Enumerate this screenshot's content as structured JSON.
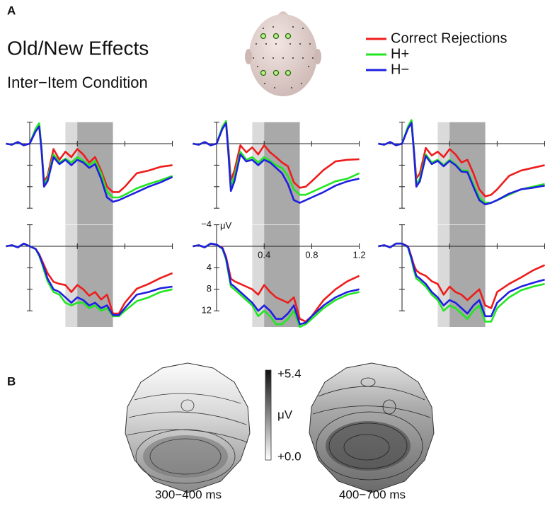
{
  "chart_data": [
    {
      "type": "line",
      "panel_label": "A",
      "title": "Old/New Effects",
      "subtitle": "Inter−Item Condition",
      "x": [
        -0.2,
        -0.15,
        -0.1,
        -0.05,
        0,
        0.05,
        0.08,
        0.1,
        0.12,
        0.15,
        0.2,
        0.25,
        0.3,
        0.35,
        0.4,
        0.45,
        0.5,
        0.55,
        0.6,
        0.65,
        0.7,
        0.75,
        0.8,
        0.9,
        1.0,
        1.1,
        1.2
      ],
      "xlim": [
        -0.2,
        1.2
      ],
      "xticks": [
        0.4,
        0.8,
        1.2
      ],
      "ylim": [
        -4,
        15
      ],
      "yticks": [
        {
          "value": -4,
          "label": "−4"
        },
        4,
        8,
        12
      ],
      "y_label": "μV",
      "y_inverted": true,
      "axes_panel": 4,
      "windows": [
        {
          "start": 0.3,
          "end": 0.4,
          "color": "#dadada"
        },
        {
          "start": 0.4,
          "end": 0.7,
          "color": "#a9a9a9"
        }
      ],
      "series": [
        {
          "name": "Correct Rejections",
          "color": "#ee1c1c",
          "values": [
            [
              0,
              0.2,
              -0.3,
              0.3,
              0,
              -2.5,
              -3.5,
              1,
              7,
              6,
              1,
              3,
              1.5,
              2.5,
              1,
              2,
              3.5,
              2.5,
              5,
              8,
              9,
              9,
              8,
              5.5,
              5,
              4.3,
              4
            ],
            [
              0,
              0.2,
              -0.3,
              0.3,
              0,
              -3,
              -4,
              1,
              6.8,
              5,
              0.3,
              1.6,
              0.7,
              2,
              0.3,
              1.6,
              2.5,
              3.5,
              4.2,
              7.2,
              8.2,
              8,
              7,
              4.9,
              3.3,
              3,
              2.9
            ],
            [
              0,
              0.2,
              -0.3,
              0.3,
              0,
              -3,
              -4.2,
              1,
              6.5,
              5.5,
              0.8,
              2.2,
              1.5,
              2.5,
              1,
              2,
              3.5,
              3,
              5.5,
              8.5,
              9.8,
              9.5,
              8.5,
              6,
              5,
              4.5,
              4
            ],
            [
              0,
              -0.2,
              0.2,
              -0.5,
              0,
              0.5,
              1.5,
              2.5,
              3.5,
              5,
              6.6,
              7,
              7.2,
              8.5,
              7.2,
              8,
              9.2,
              8.5,
              9.9,
              9,
              12.5,
              12.5,
              10.5,
              7.9,
              7,
              5.9,
              5
            ],
            [
              0,
              -0.2,
              0.2,
              -0.5,
              -0.3,
              0.3,
              2,
              4,
              6,
              6.5,
              7,
              7.5,
              8,
              9,
              7.2,
              8.5,
              9.5,
              10,
              10.5,
              9.5,
              13.5,
              14,
              13,
              10,
              8,
              6.5,
              5.5
            ],
            [
              0,
              -0.2,
              0.2,
              -0.5,
              -0.5,
              0,
              2,
              3.5,
              4.5,
              5,
              5.5,
              6.5,
              7,
              9,
              7.5,
              8.5,
              9,
              10,
              9,
              8,
              11,
              11.5,
              8.5,
              7,
              5.8,
              4.5,
              3.5
            ]
          ]
        },
        {
          "name": "H+",
          "color": "#22e622",
          "values": [
            [
              0,
              0.2,
              -0.3,
              0.3,
              0,
              -2.8,
              -3.8,
              1,
              7.5,
              6.5,
              2,
              3.5,
              2.8,
              3.5,
              2.5,
              3.2,
              4,
              3.2,
              5.5,
              9,
              10,
              10,
              9.5,
              8.3,
              7.5,
              6.8,
              6
            ],
            [
              0,
              0.2,
              -0.3,
              0.3,
              0,
              -3.2,
              -4.2,
              1.5,
              8,
              6,
              1.5,
              3,
              2.5,
              3.5,
              2.5,
              3.2,
              4,
              4.5,
              6,
              8.5,
              9.5,
              9.5,
              9,
              8,
              7,
              6.5,
              5.5
            ],
            [
              0,
              0.2,
              -0.3,
              0.3,
              0,
              -3.2,
              -4.4,
              1.2,
              7.5,
              6.5,
              2,
              3.5,
              3,
              4,
              3,
              3.8,
              5,
              5,
              7.5,
              10,
              11,
              11,
              10.5,
              9.5,
              8.5,
              8,
              7.5
            ],
            [
              0,
              -0.2,
              0.2,
              -0.5,
              0,
              0.5,
              1.8,
              3,
              4.5,
              6.5,
              8.5,
              9,
              10.5,
              11,
              10.5,
              10.5,
              11.5,
              11,
              12,
              11.5,
              13,
              13,
              12,
              10.2,
              9.5,
              8.5,
              8
            ],
            [
              0,
              -0.2,
              0.2,
              -0.5,
              -0.3,
              0.5,
              2.5,
              5,
              7.5,
              8,
              9,
              10,
              11,
              13,
              12,
              13,
              14.5,
              14.5,
              13.5,
              12,
              15,
              14.5,
              13.5,
              11.5,
              10,
              9,
              8.5
            ],
            [
              0,
              -0.2,
              0.2,
              -0.5,
              -0.5,
              0.2,
              2.5,
              4.5,
              6,
              6.5,
              7.5,
              9,
              10,
              12,
              11,
              11.5,
              12.5,
              13.5,
              12,
              11,
              14,
              14,
              11.5,
              9.5,
              8.2,
              7.5,
              7
            ]
          ]
        },
        {
          "name": "H−",
          "color": "#1f1fe0",
          "values": [
            [
              0,
              0.2,
              -0.3,
              0.3,
              0,
              -2.3,
              -3.2,
              1.5,
              8,
              7,
              2.5,
              3.8,
              3,
              4,
              3,
              3.5,
              4.5,
              3.8,
              6.5,
              10,
              10.8,
              10.5,
              10,
              9,
              8,
              7.2,
              6.2
            ],
            [
              0,
              0.2,
              -0.3,
              0.3,
              0,
              -2.8,
              -3.8,
              2,
              8.8,
              7,
              2,
              3.3,
              3,
              4,
              3,
              3.5,
              4.5,
              5.5,
              7.5,
              10.5,
              11,
              10.5,
              10,
              9,
              7.8,
              7,
              6.5
            ],
            [
              0,
              0.2,
              -0.3,
              0.3,
              0,
              -2.8,
              -3.9,
              1.5,
              8,
              7,
              2.3,
              3.8,
              3.2,
              4.2,
              3.2,
              4,
              5.2,
              5.3,
              8,
              10.5,
              11.3,
              11,
              10.5,
              9.3,
              8.5,
              8.2,
              7.8
            ],
            [
              0,
              -0.2,
              0.2,
              -0.5,
              0,
              0.5,
              1.6,
              2.8,
              4,
              6,
              8,
              8.5,
              9.5,
              10.5,
              9.5,
              10,
              11,
              10.5,
              11.5,
              11,
              12.8,
              12.8,
              11.5,
              9,
              8.5,
              7.8,
              7.5
            ],
            [
              0,
              -0.2,
              0.2,
              -0.5,
              -0.3,
              0.4,
              2.2,
              4.5,
              7,
              7.5,
              8.5,
              9.5,
              10.5,
              12,
              11,
              12,
              13.5,
              13.5,
              12.5,
              11,
              14.5,
              14.2,
              13,
              11,
              9.5,
              8.5,
              8
            ],
            [
              0,
              -0.2,
              0.2,
              -0.5,
              -0.5,
              0.1,
              2.2,
              4,
              5.5,
              6,
              7,
              8.5,
              9.5,
              11,
              10,
              10.5,
              11.5,
              12.5,
              11,
              10,
              13,
              13,
              10.5,
              8.5,
              7.5,
              6.8,
              6.2
            ]
          ]
        }
      ]
    },
    {
      "type": "topomap",
      "panel_label": "B",
      "maps": [
        {
          "label": "300−400 ms"
        },
        {
          "label": "400−700 ms"
        }
      ],
      "clim": [
        0,
        5.4
      ],
      "cticks": [
        {
          "value": 5.4,
          "label": "+5.4"
        },
        {
          "value": 0,
          "label": "+0.0"
        }
      ],
      "unit": "μV"
    }
  ]
}
